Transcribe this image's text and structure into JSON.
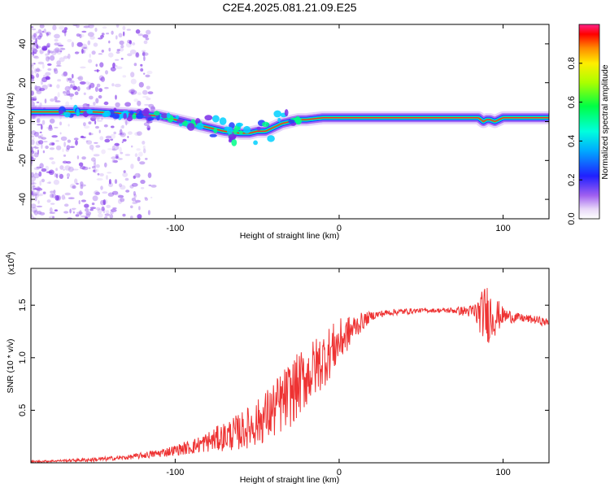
{
  "title": "C2E4.2025.081.21.09.E25",
  "chart_data": [
    {
      "type": "heatmap",
      "name": "spectrogram",
      "xlabel": "Height of straight line (km)",
      "ylabel": "Frequency (Hz)",
      "xlim": [
        -188,
        128
      ],
      "ylim": [
        -50,
        50
      ],
      "xticks": [
        -100,
        0,
        100
      ],
      "yticks": [
        -40,
        -20,
        0,
        20,
        40
      ],
      "grid": false,
      "ridge": {
        "x": [
          -188,
          -170,
          -150,
          -130,
          -110,
          -100,
          -90,
          -80,
          -70,
          -60,
          -55,
          -50,
          -45,
          -40,
          -35,
          -30,
          -25,
          -20,
          -10,
          0,
          20,
          40,
          60,
          80,
          85,
          88,
          90,
          92,
          95,
          100,
          110,
          128
        ],
        "y": [
          5,
          5,
          5,
          4,
          3,
          1,
          -1,
          -3,
          -5,
          -6,
          -6,
          -5,
          -5,
          -3,
          -1,
          0,
          1,
          1,
          2,
          2,
          2,
          2,
          2,
          2,
          2,
          0,
          1,
          1,
          0,
          2,
          2,
          2
        ]
      },
      "colorbar": {
        "label": "Normalized spectral amplitude",
        "range": [
          0,
          1
        ],
        "ticks": [
          0.0,
          0.2,
          0.4,
          0.6,
          0.8
        ]
      }
    },
    {
      "type": "line",
      "name": "snr",
      "xlabel": "Height of straight line (km)",
      "ylabel": "SNR (10 * v/v)",
      "multiplier": "(x10",
      "multiplier_exp": "4",
      "xlim": [
        -188,
        128
      ],
      "ylim": [
        0,
        1.85
      ],
      "xticks": [
        -100,
        0,
        100
      ],
      "yticks": [
        0.5,
        1.0,
        1.5
      ],
      "grid": false,
      "color": "#ee3333",
      "series": [
        {
          "x": [
            -188,
            -170,
            -150,
            -130,
            -120,
            -110,
            -100,
            -90,
            -80,
            -70,
            -60,
            -50,
            -40,
            -30,
            -20,
            -10,
            0,
            10,
            20,
            30,
            40,
            50,
            60,
            70,
            80,
            85,
            90,
            95,
            100,
            110,
            120,
            128
          ],
          "mean": [
            0.01,
            0.02,
            0.03,
            0.05,
            0.07,
            0.09,
            0.12,
            0.15,
            0.2,
            0.25,
            0.3,
            0.38,
            0.5,
            0.65,
            0.82,
            0.98,
            1.15,
            1.3,
            1.4,
            1.43,
            1.44,
            1.45,
            1.45,
            1.45,
            1.44,
            1.42,
            1.42,
            1.4,
            1.4,
            1.38,
            1.36,
            1.33
          ],
          "spread": [
            0.01,
            0.01,
            0.02,
            0.02,
            0.03,
            0.04,
            0.05,
            0.07,
            0.1,
            0.14,
            0.18,
            0.22,
            0.28,
            0.32,
            0.3,
            0.28,
            0.22,
            0.12,
            0.04,
            0.03,
            0.03,
            0.02,
            0.02,
            0.03,
            0.06,
            0.16,
            0.3,
            0.2,
            0.08,
            0.04,
            0.04,
            0.04
          ]
        }
      ]
    }
  ]
}
